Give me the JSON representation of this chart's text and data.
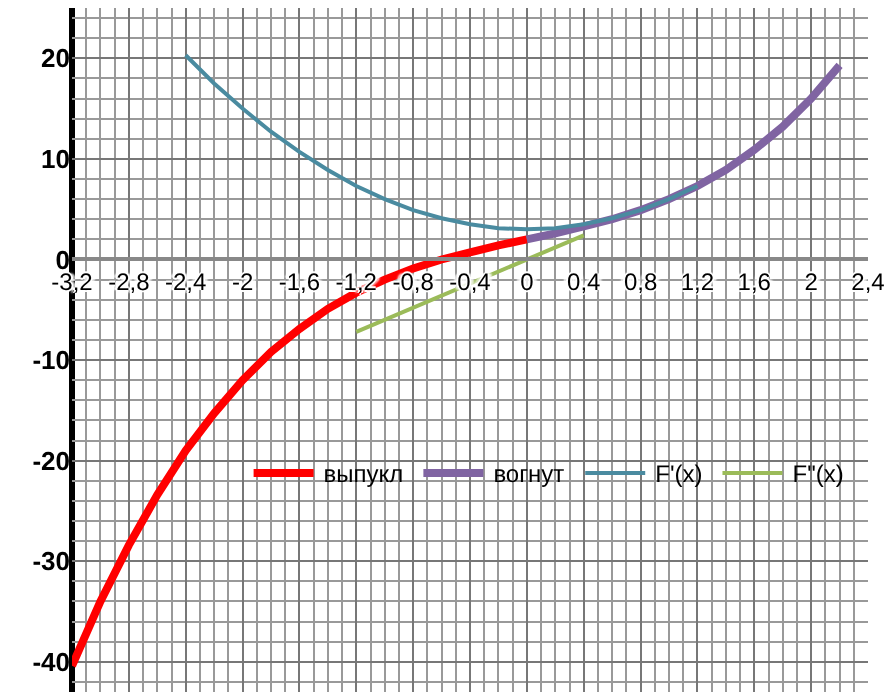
{
  "chart_data": {
    "type": "line",
    "xlim": [
      -3.2,
      2.4
    ],
    "ylim": [
      -43,
      25
    ],
    "xticks": [
      {
        "value": -3.2,
        "label": "-3,2"
      },
      {
        "value": -2.8,
        "label": "-2,8"
      },
      {
        "value": -2.4,
        "label": "-2,4"
      },
      -2,
      {
        "value": -1.6,
        "label": "-1,6"
      },
      {
        "value": -1.2,
        "label": "-1,2"
      },
      {
        "value": -0.8,
        "label": "-0,8"
      },
      {
        "value": -0.4,
        "label": "-0,4"
      },
      0,
      {
        "value": 0.4,
        "label": "0,4"
      },
      {
        "value": 0.8,
        "label": "0,8"
      },
      {
        "value": 1.2,
        "label": "1,2"
      },
      {
        "value": 1.6,
        "label": "1,6"
      },
      2,
      {
        "value": 2.4,
        "label": "2,4"
      }
    ],
    "yticks": [
      -40,
      -30,
      -20,
      -10,
      0,
      10,
      20
    ],
    "grid": true,
    "legend": "center",
    "marker": "none",
    "line_style": "solid",
    "series": [
      {
        "name": "выпукл",
        "color": "#ff0000",
        "x": [
          -3.2,
          -3.0,
          -2.8,
          -2.6,
          -2.4,
          -2.2,
          -2.0,
          -1.8,
          -1.6,
          -1.4,
          -1.2,
          -1.0,
          -0.8,
          -0.6,
          -0.4,
          -0.2,
          0
        ],
        "values": [
          -40.4,
          -34,
          -28.4,
          -23.4,
          -19,
          -15.3,
          -12,
          -9.2,
          -6.9,
          -4.9,
          -3.3,
          -2,
          -0.9,
          0,
          0.7,
          1.4,
          2
        ]
      },
      {
        "name": "вогнут",
        "color": "#8064a2",
        "x": [
          0,
          0.2,
          0.4,
          0.6,
          0.8,
          1.0,
          1.2,
          1.4,
          1.6,
          1.8,
          2.0,
          2.2
        ],
        "values": [
          2,
          2.6,
          3.3,
          4,
          4.9,
          6,
          7.3,
          8.9,
          10.9,
          13.2,
          16,
          19.3
        ]
      },
      {
        "name": "F'(x)",
        "color": "#4a8ba0",
        "x": [
          -2.4,
          -2.2,
          -2.0,
          -1.8,
          -1.6,
          -1.4,
          -1.2,
          -1.0,
          -0.8,
          -0.6,
          -0.4,
          -0.2,
          0,
          0.2,
          0.4,
          0.6,
          0.8,
          1.0,
          1.2
        ],
        "values": [
          20.3,
          17.5,
          15,
          12.7,
          10.7,
          8.9,
          7.3,
          6,
          4.9,
          4.1,
          3.5,
          3.1,
          3,
          3.1,
          3.5,
          4.1,
          4.9,
          6,
          7.3
        ]
      },
      {
        "name": "F\"(x)",
        "color": "#9bbb59",
        "x": [
          -1.2,
          0.4
        ],
        "values": [
          -7.2,
          2.4
        ]
      }
    ]
  }
}
